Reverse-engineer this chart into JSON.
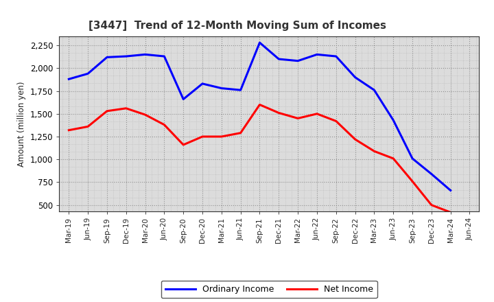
{
  "title": "[3447]  Trend of 12-Month Moving Sum of Incomes",
  "ylabel": "Amount (million yen)",
  "x_labels": [
    "Mar-19",
    "Jun-19",
    "Sep-19",
    "Dec-19",
    "Mar-20",
    "Jun-20",
    "Sep-20",
    "Dec-20",
    "Mar-21",
    "Jun-21",
    "Sep-21",
    "Dec-21",
    "Mar-22",
    "Jun-22",
    "Sep-22",
    "Dec-22",
    "Mar-23",
    "Jun-23",
    "Sep-23",
    "Dec-23",
    "Mar-24",
    "Jun-24"
  ],
  "ordinary_income": [
    1880,
    1940,
    2120,
    2130,
    2150,
    2130,
    1660,
    1830,
    1780,
    1760,
    2280,
    2100,
    2080,
    2150,
    2130,
    1900,
    1760,
    1430,
    1010,
    840,
    660,
    null
  ],
  "net_income": [
    1320,
    1360,
    1530,
    1560,
    1490,
    1380,
    1160,
    1250,
    1250,
    1290,
    1600,
    1510,
    1450,
    1500,
    1420,
    1220,
    1090,
    1010,
    760,
    500,
    420,
    null
  ],
  "ordinary_color": "#0000FF",
  "net_color": "#FF0000",
  "ylim": [
    430,
    2350
  ],
  "yticks": [
    500,
    750,
    1000,
    1250,
    1500,
    1750,
    2000,
    2250
  ],
  "plot_bg_color": "#DCDCDC",
  "fig_bg_color": "#FFFFFF",
  "grid_color": "#AAAAAA",
  "line_width": 2.2,
  "title_color": "#333333",
  "legend_labels": [
    "Ordinary Income",
    "Net Income"
  ]
}
